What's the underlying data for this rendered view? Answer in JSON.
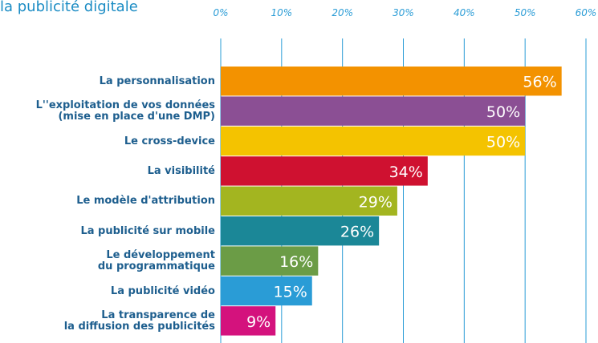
{
  "chart_data": {
    "type": "barh",
    "title": "la publicité digitale",
    "categories": [
      "La personnalisation",
      "L''exploitation de vos données\n(mise en place d'une DMP)",
      "Le cross-device",
      "La visibilité",
      "Le modèle d'attribution",
      "La publicité sur mobile",
      "Le développement\ndu programmatique",
      "La publicité vidéo",
      "La transparence de\nla diffusion des publicités"
    ],
    "values": [
      56,
      50,
      50,
      34,
      29,
      26,
      16,
      15,
      9
    ],
    "value_labels": [
      "56%",
      "50%",
      "50%",
      "34%",
      "29%",
      "26%",
      "16%",
      "15%",
      "9%"
    ],
    "colors": [
      "#f39200",
      "#8b4f94",
      "#f4c300",
      "#cf1130",
      "#a3b520",
      "#1b8797",
      "#6b9c46",
      "#2a9cd6",
      "#d4127d"
    ],
    "xlim": [
      0,
      60
    ],
    "xticks": [
      {
        "value": 0,
        "label": "0%"
      },
      {
        "value": 10,
        "label": "10%"
      },
      {
        "value": 20,
        "label": "20%"
      },
      {
        "value": 30,
        "label": "30%"
      },
      {
        "value": 40,
        "label": "40%"
      },
      {
        "value": 50,
        "label": "50%"
      },
      {
        "value": 60,
        "label": "60%"
      }
    ],
    "grid": true
  }
}
